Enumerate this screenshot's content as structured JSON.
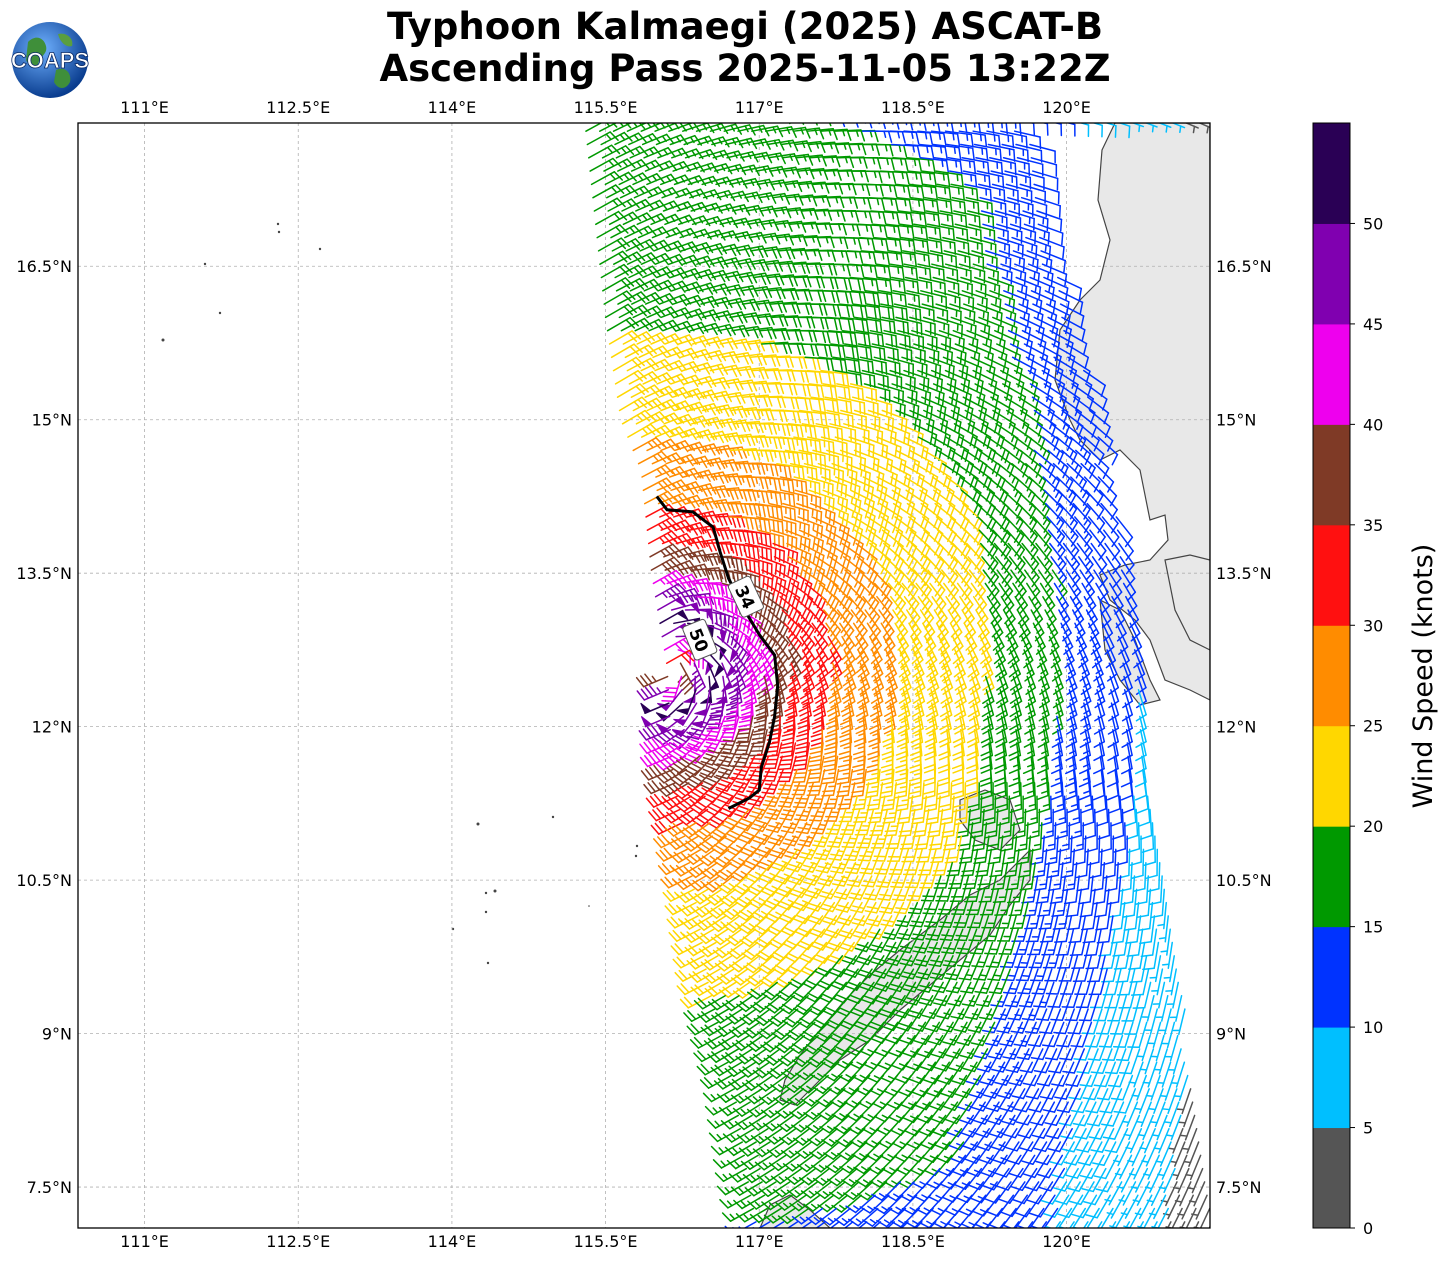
{
  "title": {
    "line1": "Typhoon Kalmaegi (2025) ASCAT-B",
    "line2": "Ascending Pass 2025-11-05 13:22Z"
  },
  "logo": {
    "text": "COAPS",
    "icon": "globe-logo-icon"
  },
  "map": {
    "lon_range": [
      110.35,
      121.4
    ],
    "lat_range": [
      7.1,
      17.9
    ],
    "lon_ticks": [
      "111°E",
      "112.5°E",
      "114°E",
      "115.5°E",
      "117°E",
      "118.5°E",
      "120°E"
    ],
    "lon_values": [
      111.0,
      112.5,
      114.0,
      115.5,
      117.0,
      118.5,
      120.0
    ],
    "lat_ticks": [
      "16.5°N",
      "15°N",
      "13.5°N",
      "12°N",
      "10.5°N",
      "9°N",
      "7.5°N"
    ],
    "lat_values": [
      16.5,
      15.0,
      13.5,
      12.0,
      10.5,
      9.0,
      7.5
    ],
    "storm_center": {
      "lon": 116.1,
      "lat": 12.6
    },
    "contours": [
      {
        "label": "34",
        "units": "knots"
      },
      {
        "label": "50",
        "units": "knots"
      }
    ],
    "contour_34_path": [
      [
        116.0,
        14.25
      ],
      [
        116.1,
        14.12
      ],
      [
        116.35,
        14.1
      ],
      [
        116.55,
        13.95
      ],
      [
        116.62,
        13.7
      ],
      [
        116.7,
        13.45
      ],
      [
        116.85,
        13.15
      ],
      [
        117.0,
        12.9
      ],
      [
        117.15,
        12.7
      ],
      [
        117.18,
        12.4
      ],
      [
        117.15,
        12.1
      ],
      [
        117.1,
        11.85
      ],
      [
        117.02,
        11.6
      ],
      [
        117.0,
        11.38
      ],
      [
        116.9,
        11.3
      ],
      [
        116.7,
        11.2
      ]
    ],
    "colors": {
      "land": "#f4f4f4",
      "coast": "#444444",
      "grid": "#b0b0b0"
    }
  },
  "colorbar": {
    "label": "Wind Speed (knots)",
    "ticks": [
      "0",
      "5",
      "10",
      "15",
      "20",
      "25",
      "30",
      "35",
      "40",
      "45",
      "50"
    ],
    "colors": [
      "#555555",
      "#00bfff",
      "#0033ff",
      "#009900",
      "#ffd700",
      "#ff8c00",
      "#ff1010",
      "#7f3a26",
      "#ee00ee",
      "#8000b0",
      "#2a0055"
    ]
  }
}
